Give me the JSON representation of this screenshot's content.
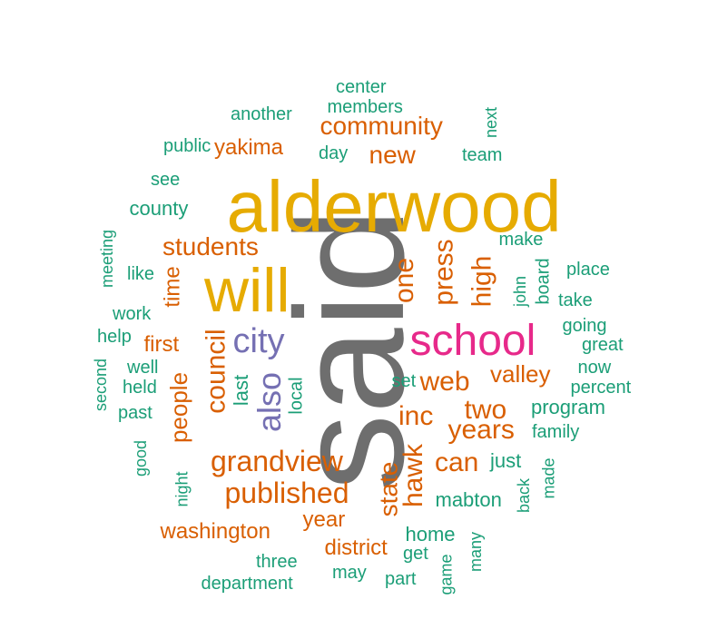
{
  "colors": {
    "said": "#6e6e6e",
    "alderwood": "#e6ab02",
    "will": "#e6ab02",
    "school": "#e7298a",
    "city_also": "#7570b3",
    "orange": "#d95f02",
    "green": "#1b9e77"
  },
  "words": [
    {
      "text": "said",
      "color": "said",
      "rotate": -90
    },
    {
      "text": "alderwood",
      "color": "alderwood",
      "rotate": 0
    },
    {
      "text": "will",
      "color": "will",
      "rotate": 0
    },
    {
      "text": "school",
      "color": "school",
      "rotate": 0
    },
    {
      "text": "city",
      "color": "city_also",
      "rotate": 0
    },
    {
      "text": "also",
      "color": "city_also",
      "rotate": -90
    },
    {
      "text": "community",
      "color": "orange",
      "rotate": 0
    },
    {
      "text": "yakima",
      "color": "orange",
      "rotate": 0
    },
    {
      "text": "new",
      "color": "orange",
      "rotate": 0
    },
    {
      "text": "students",
      "color": "orange",
      "rotate": 0
    },
    {
      "text": "time",
      "color": "orange",
      "rotate": -90
    },
    {
      "text": "first",
      "color": "orange",
      "rotate": 0
    },
    {
      "text": "council",
      "color": "orange",
      "rotate": -90
    },
    {
      "text": "people",
      "color": "orange",
      "rotate": -90
    },
    {
      "text": "one",
      "color": "orange",
      "rotate": -90
    },
    {
      "text": "press",
      "color": "orange",
      "rotate": -90
    },
    {
      "text": "high",
      "color": "orange",
      "rotate": -90
    },
    {
      "text": "web",
      "color": "orange",
      "rotate": 0
    },
    {
      "text": "valley",
      "color": "orange",
      "rotate": 0
    },
    {
      "text": "inc",
      "color": "orange",
      "rotate": 0
    },
    {
      "text": "two",
      "color": "orange",
      "rotate": 0
    },
    {
      "text": "years",
      "color": "orange",
      "rotate": 0
    },
    {
      "text": "grandview",
      "color": "orange",
      "rotate": 0
    },
    {
      "text": "can",
      "color": "orange",
      "rotate": 0
    },
    {
      "text": "published",
      "color": "orange",
      "rotate": 0
    },
    {
      "text": "hawk",
      "color": "orange",
      "rotate": -90
    },
    {
      "text": "state",
      "color": "orange",
      "rotate": -90
    },
    {
      "text": "year",
      "color": "orange",
      "rotate": 0
    },
    {
      "text": "washington",
      "color": "orange",
      "rotate": 0
    },
    {
      "text": "district",
      "color": "orange",
      "rotate": 0
    },
    {
      "text": "center",
      "color": "green",
      "rotate": 0
    },
    {
      "text": "members",
      "color": "green",
      "rotate": 0
    },
    {
      "text": "another",
      "color": "green",
      "rotate": 0
    },
    {
      "text": "next",
      "color": "green",
      "rotate": -90
    },
    {
      "text": "public",
      "color": "green",
      "rotate": 0
    },
    {
      "text": "day",
      "color": "green",
      "rotate": 0
    },
    {
      "text": "team",
      "color": "green",
      "rotate": 0
    },
    {
      "text": "see",
      "color": "green",
      "rotate": 0
    },
    {
      "text": "county",
      "color": "green",
      "rotate": 0
    },
    {
      "text": "meeting",
      "color": "green",
      "rotate": -90
    },
    {
      "text": "like",
      "color": "green",
      "rotate": 0
    },
    {
      "text": "make",
      "color": "green",
      "rotate": 0
    },
    {
      "text": "board",
      "color": "green",
      "rotate": -90
    },
    {
      "text": "place",
      "color": "green",
      "rotate": 0
    },
    {
      "text": "john",
      "color": "green",
      "rotate": -90
    },
    {
      "text": "take",
      "color": "green",
      "rotate": 0
    },
    {
      "text": "work",
      "color": "green",
      "rotate": 0
    },
    {
      "text": "going",
      "color": "green",
      "rotate": 0
    },
    {
      "text": "help",
      "color": "green",
      "rotate": 0
    },
    {
      "text": "great",
      "color": "green",
      "rotate": 0
    },
    {
      "text": "well",
      "color": "green",
      "rotate": 0
    },
    {
      "text": "second",
      "color": "green",
      "rotate": -90
    },
    {
      "text": "held",
      "color": "green",
      "rotate": 0
    },
    {
      "text": "last",
      "color": "green",
      "rotate": -90
    },
    {
      "text": "local",
      "color": "green",
      "rotate": -90
    },
    {
      "text": "set",
      "color": "green",
      "rotate": 0
    },
    {
      "text": "now",
      "color": "green",
      "rotate": 0
    },
    {
      "text": "percent",
      "color": "green",
      "rotate": 0
    },
    {
      "text": "past",
      "color": "green",
      "rotate": 0
    },
    {
      "text": "program",
      "color": "green",
      "rotate": 0
    },
    {
      "text": "family",
      "color": "green",
      "rotate": 0
    },
    {
      "text": "good",
      "color": "green",
      "rotate": -90
    },
    {
      "text": "night",
      "color": "green",
      "rotate": -90
    },
    {
      "text": "just",
      "color": "green",
      "rotate": 0
    },
    {
      "text": "made",
      "color": "green",
      "rotate": -90
    },
    {
      "text": "back",
      "color": "green",
      "rotate": -90
    },
    {
      "text": "mabton",
      "color": "green",
      "rotate": 0
    },
    {
      "text": "home",
      "color": "green",
      "rotate": 0
    },
    {
      "text": "get",
      "color": "green",
      "rotate": 0
    },
    {
      "text": "three",
      "color": "green",
      "rotate": 0
    },
    {
      "text": "many",
      "color": "green",
      "rotate": -90
    },
    {
      "text": "may",
      "color": "green",
      "rotate": 0
    },
    {
      "text": "part",
      "color": "green",
      "rotate": 0
    },
    {
      "text": "game",
      "color": "green",
      "rotate": -90
    },
    {
      "text": "department",
      "color": "green",
      "rotate": 0
    }
  ]
}
